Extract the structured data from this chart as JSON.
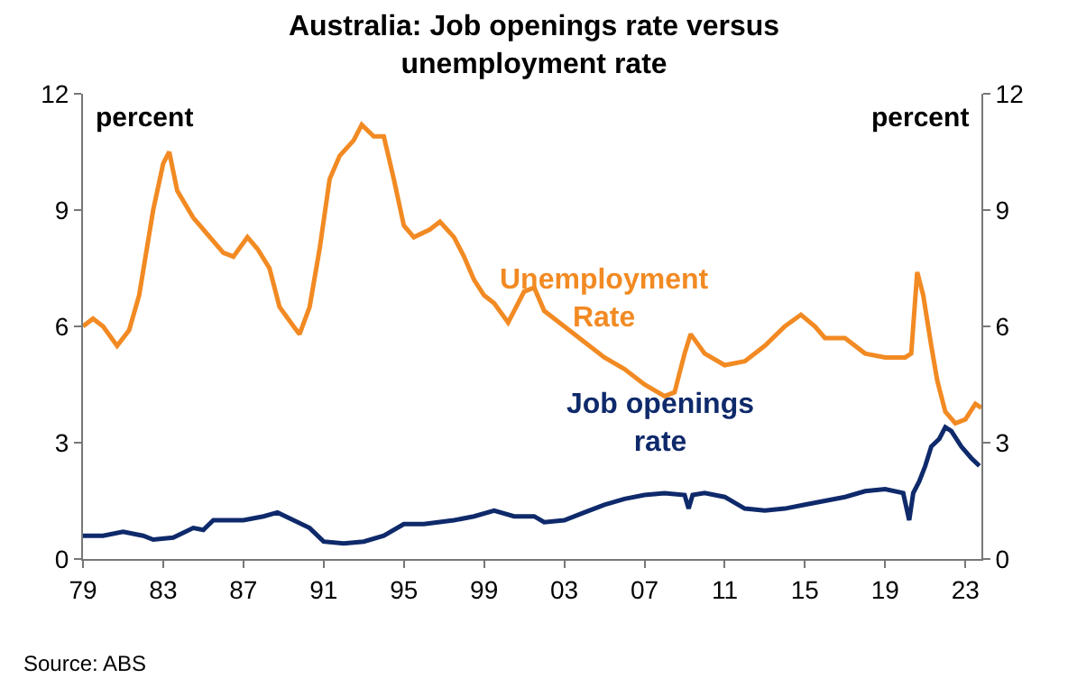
{
  "chart_data": {
    "type": "line",
    "title": "Australia: Job openings rate versus unemployment rate",
    "ylabel": "percent",
    "y2label": "percent",
    "annotations": [
      "Source: ABS"
    ],
    "xlim": [
      1979,
      2023.8
    ],
    "xticks": [
      {
        "value": 1979,
        "label": "79"
      },
      {
        "value": 1983,
        "label": "83"
      },
      {
        "value": 1987,
        "label": "87"
      },
      {
        "value": 1991,
        "label": "91"
      },
      {
        "value": 1995,
        "label": "95"
      },
      {
        "value": 1999,
        "label": "99"
      },
      {
        "value": 2003,
        "label": "03"
      },
      {
        "value": 2007,
        "label": "07"
      },
      {
        "value": 2011,
        "label": "11"
      },
      {
        "value": 2015,
        "label": "15"
      },
      {
        "value": 2019,
        "label": "19"
      },
      {
        "value": 2023,
        "label": "23"
      }
    ],
    "ylim": [
      0,
      12
    ],
    "yticks": [
      0,
      3,
      6,
      9,
      12
    ],
    "y2lim": [
      0,
      12
    ],
    "y2ticks": [
      0,
      3,
      6,
      9,
      12
    ],
    "grid": false,
    "legend": false,
    "marker": "none",
    "line_style": "solid",
    "series": [
      {
        "name": "Unemployment Rate",
        "color": "#f28a23",
        "x": [
          1979,
          1979.5,
          1980,
          1980.7,
          1981.3,
          1981.8,
          1982.5,
          1983,
          1983.3,
          1983.7,
          1984.5,
          1985,
          1986,
          1986.5,
          1987.2,
          1987.7,
          1988.3,
          1988.8,
          1989.5,
          1989.8,
          1990.3,
          1990.8,
          1991.3,
          1991.8,
          1992.5,
          1992.9,
          1993.5,
          1994,
          1994.5,
          1995,
          1995.5,
          1996.3,
          1996.8,
          1997.5,
          1998,
          1998.5,
          1999,
          1999.5,
          2000.2,
          2001,
          2001.5,
          2002,
          2003,
          2004,
          2005,
          2006,
          2007,
          2008,
          2008.5,
          2009,
          2009.3,
          2010,
          2011,
          2012,
          2013,
          2014,
          2014.8,
          2015.5,
          2016,
          2017,
          2018,
          2019,
          2020,
          2020.3,
          2020.6,
          2020.9,
          2021.3,
          2021.6,
          2022,
          2022.5,
          2023,
          2023.5,
          2023.8
        ],
        "values": [
          6.0,
          6.2,
          6.0,
          5.5,
          5.9,
          6.8,
          9.0,
          10.2,
          10.5,
          9.5,
          8.8,
          8.5,
          7.9,
          7.8,
          8.3,
          8.0,
          7.5,
          6.5,
          6.0,
          5.8,
          6.5,
          8.0,
          9.8,
          10.4,
          10.8,
          11.2,
          10.9,
          10.9,
          9.8,
          8.6,
          8.3,
          8.5,
          8.7,
          8.3,
          7.8,
          7.2,
          6.8,
          6.6,
          6.1,
          6.9,
          7.0,
          6.4,
          6.0,
          5.6,
          5.2,
          4.9,
          4.5,
          4.2,
          4.3,
          5.3,
          5.8,
          5.3,
          5.0,
          5.1,
          5.5,
          6.0,
          6.3,
          6.0,
          5.7,
          5.7,
          5.3,
          5.2,
          5.2,
          5.3,
          7.4,
          6.8,
          5.5,
          4.6,
          3.8,
          3.5,
          3.6,
          4.0,
          3.9
        ]
      },
      {
        "name": "Job openings rate",
        "color": "#0f2a6b",
        "x": [
          1979,
          1980,
          1981,
          1982,
          1982.5,
          1983.5,
          1984.5,
          1985,
          1985.5,
          1987,
          1988,
          1988.7,
          1989.5,
          1990.3,
          1991,
          1992,
          1993,
          1994,
          1995,
          1996,
          1997.5,
          1998.5,
          1999.5,
          2000.5,
          2001.5,
          2002,
          2003,
          2004,
          2005,
          2006,
          2007,
          2008,
          2009,
          2009.2,
          2009.4,
          2010,
          2011,
          2012,
          2013,
          2014,
          2015,
          2016,
          2017,
          2018,
          2019,
          2019.9,
          2020.2,
          2020.4,
          2020.7,
          2021,
          2021.3,
          2021.7,
          2022,
          2022.3,
          2022.8,
          2023.3,
          2023.7
        ],
        "values": [
          0.6,
          0.6,
          0.7,
          0.6,
          0.5,
          0.55,
          0.8,
          0.75,
          1.0,
          1.0,
          1.1,
          1.2,
          1.0,
          0.8,
          0.45,
          0.4,
          0.45,
          0.6,
          0.9,
          0.9,
          1.0,
          1.1,
          1.25,
          1.1,
          1.1,
          0.95,
          1.0,
          1.2,
          1.4,
          1.55,
          1.65,
          1.7,
          1.65,
          1.3,
          1.65,
          1.7,
          1.6,
          1.3,
          1.25,
          1.3,
          1.4,
          1.5,
          1.6,
          1.75,
          1.8,
          1.7,
          1.0,
          1.7,
          2.0,
          2.4,
          2.9,
          3.1,
          3.4,
          3.3,
          2.9,
          2.6,
          2.4
        ]
      }
    ]
  }
}
